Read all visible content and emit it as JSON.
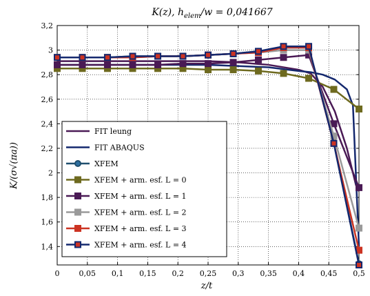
{
  "chart_data": {
    "type": "line",
    "title": "K(z), h_elem/w = 0,041667",
    "xlabel": "z/t",
    "ylabel": "K/(σ√(πa))",
    "xlim": [
      0,
      0.5
    ],
    "ylim": [
      1.25,
      3.2
    ],
    "xticks": [
      0,
      0.05,
      0.1,
      0.15,
      0.2,
      0.25,
      0.3,
      0.35,
      0.4,
      0.45,
      0.5
    ],
    "xtick_labels": [
      "0",
      "0,05",
      "0,1",
      "0,15",
      "0,2",
      "0,25",
      "0,3",
      "0,35",
      "0,4",
      "0,45",
      "0,5"
    ],
    "yticks": [
      1.4,
      1.6,
      1.8,
      2,
      2.2,
      2.4,
      2.6,
      2.8,
      3,
      3.2
    ],
    "ytick_labels": [
      "1,4",
      "1,6",
      "1,8",
      "2",
      "2,2",
      "2,4",
      "2,6",
      "2,8",
      "3",
      "3,2"
    ],
    "grid": true,
    "legend_position": "bottom-left",
    "series": [
      {
        "name": "FIT leung",
        "color": "#4a1a55",
        "marker": "none",
        "x": [
          0,
          0.05,
          0.1,
          0.15,
          0.2,
          0.25,
          0.3,
          0.35,
          0.4,
          0.42,
          0.44,
          0.46,
          0.48,
          0.49,
          0.495,
          0.5
        ],
        "y": [
          2.91,
          2.91,
          2.91,
          2.91,
          2.91,
          2.91,
          2.9,
          2.88,
          2.84,
          2.81,
          2.7,
          2.5,
          2.2,
          2.0,
          1.9,
          1.85
        ]
      },
      {
        "name": "FIT ABAQUS",
        "color": "#14286e",
        "marker": "none",
        "x": [
          0,
          0.05,
          0.1,
          0.15,
          0.2,
          0.25,
          0.3,
          0.35,
          0.4,
          0.42,
          0.44,
          0.46,
          0.48,
          0.49,
          0.5
        ],
        "y": [
          2.88,
          2.88,
          2.88,
          2.88,
          2.88,
          2.88,
          2.87,
          2.86,
          2.83,
          2.82,
          2.8,
          2.76,
          2.68,
          2.55,
          1.4
        ]
      },
      {
        "name": "XFEM",
        "color": "#1f4f6e",
        "marker": "circle",
        "fill": "#2e6fa0",
        "x": [
          0,
          0.0417,
          0.0833,
          0.125,
          0.1667,
          0.2083,
          0.25,
          0.2917,
          0.3333,
          0.375,
          0.4167,
          0.4583,
          0.5
        ],
        "y": [
          2.94,
          2.94,
          2.94,
          2.95,
          2.95,
          2.95,
          2.96,
          2.97,
          2.99,
          3.02,
          3.02,
          2.25,
          1.26
        ]
      },
      {
        "name": "XFEM + arm. esf. L = 0",
        "color": "#6e6a1f",
        "marker": "square",
        "fill": "#6e6a1f",
        "x": [
          0,
          0.0417,
          0.0833,
          0.125,
          0.1667,
          0.2083,
          0.25,
          0.2917,
          0.3333,
          0.375,
          0.4167,
          0.4583,
          0.5
        ],
        "y": [
          2.85,
          2.85,
          2.85,
          2.85,
          2.85,
          2.85,
          2.84,
          2.84,
          2.83,
          2.81,
          2.77,
          2.68,
          2.52
        ]
      },
      {
        "name": "XFEM + arm. esf. L = 1",
        "color": "#4a1a55",
        "marker": "square",
        "fill": "#4a1a55",
        "x": [
          0,
          0.0417,
          0.0833,
          0.125,
          0.1667,
          0.2083,
          0.25,
          0.2917,
          0.3333,
          0.375,
          0.4167,
          0.4583,
          0.5
        ],
        "y": [
          2.88,
          2.88,
          2.88,
          2.88,
          2.88,
          2.89,
          2.89,
          2.9,
          2.92,
          2.94,
          2.96,
          2.4,
          1.88
        ]
      },
      {
        "name": "XFEM + arm. esf. L = 2",
        "color": "#9a9a9a",
        "marker": "square",
        "fill": "#9a9a9a",
        "x": [
          0,
          0.0417,
          0.0833,
          0.125,
          0.1667,
          0.2083,
          0.25,
          0.2917,
          0.3333,
          0.375,
          0.4167,
          0.4583,
          0.5
        ],
        "y": [
          2.94,
          2.94,
          2.94,
          2.94,
          2.95,
          2.95,
          2.96,
          2.97,
          2.98,
          3.0,
          3.0,
          2.3,
          1.55
        ]
      },
      {
        "name": "XFEM + arm. esf. L = 3",
        "color": "#cc3322",
        "marker": "square",
        "fill": "#cc3322",
        "x": [
          0,
          0.0417,
          0.0833,
          0.125,
          0.1667,
          0.2083,
          0.25,
          0.2917,
          0.3333,
          0.375,
          0.4167,
          0.4583,
          0.5
        ],
        "y": [
          2.94,
          2.94,
          2.94,
          2.94,
          2.95,
          2.95,
          2.96,
          2.97,
          2.98,
          3.02,
          3.02,
          2.24,
          1.37
        ]
      },
      {
        "name": "XFEM + arm. esf. L = 4",
        "color": "#14286e",
        "marker": "square",
        "fill": "#cc3322",
        "x": [
          0,
          0.0417,
          0.0833,
          0.125,
          0.1667,
          0.2083,
          0.25,
          0.2917,
          0.3333,
          0.375,
          0.4167,
          0.4583,
          0.5
        ],
        "y": [
          2.94,
          2.94,
          2.94,
          2.95,
          2.95,
          2.95,
          2.96,
          2.97,
          2.99,
          3.03,
          3.03,
          2.24,
          1.25
        ]
      }
    ]
  }
}
